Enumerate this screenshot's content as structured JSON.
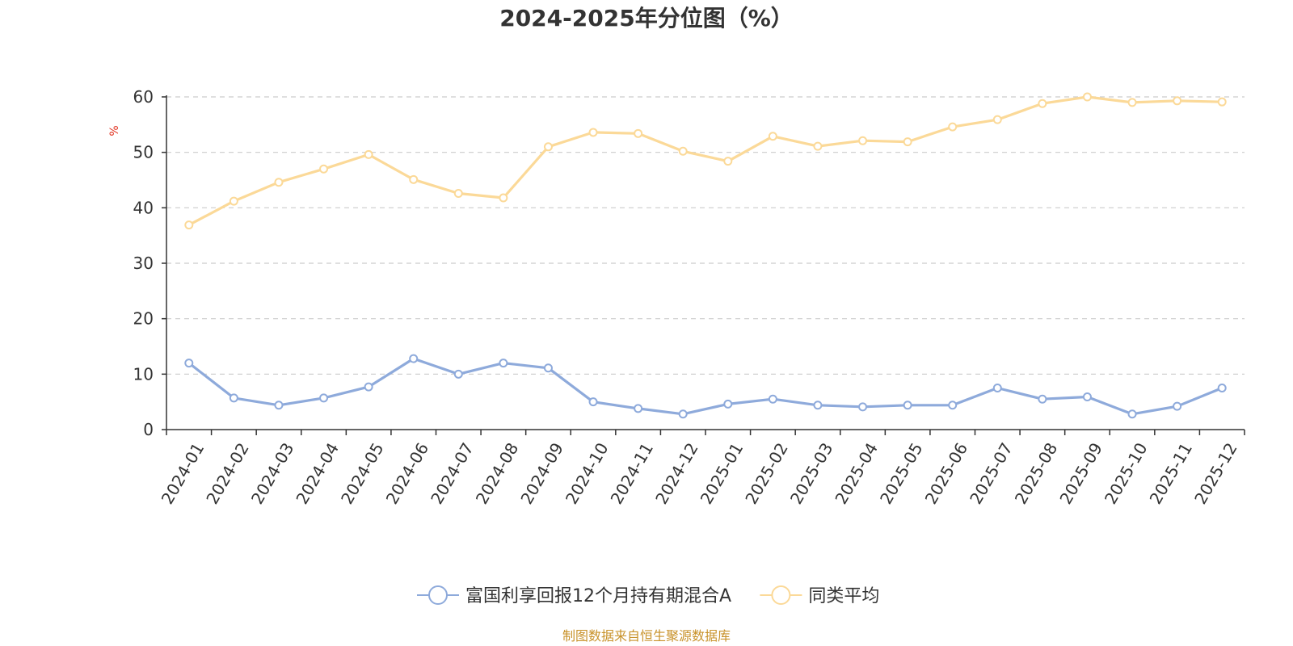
{
  "chart_data": {
    "type": "line",
    "title": "2024-2025年分位图（%）",
    "xlabel": "",
    "ylabel": "%",
    "ylim": [
      0,
      60
    ],
    "yticks": [
      0,
      10,
      20,
      30,
      40,
      50,
      60
    ],
    "grid": true,
    "legend_position": "bottom",
    "categories": [
      "2024-01",
      "2024-02",
      "2024-03",
      "2024-04",
      "2024-05",
      "2024-06",
      "2024-07",
      "2024-08",
      "2024-09",
      "2024-10",
      "2024-11",
      "2024-12",
      "2025-01",
      "2025-02",
      "2025-03",
      "2025-04",
      "2025-05",
      "2025-06",
      "2025-07",
      "2025-08",
      "2025-09",
      "2025-10",
      "2025-11",
      "2025-12"
    ],
    "series": [
      {
        "name": "富国利享回报12个月持有期混合A",
        "color": "#8eaadb",
        "values": [
          12.0,
          5.7,
          4.4,
          5.7,
          7.7,
          12.8,
          10.0,
          12.0,
          11.1,
          5.0,
          3.8,
          2.8,
          4.6,
          5.5,
          4.4,
          4.1,
          4.4,
          4.4,
          7.5,
          5.5,
          5.9,
          2.8,
          4.2,
          7.5
        ]
      },
      {
        "name": "同类平均",
        "color": "#fbd998",
        "values": [
          36.9,
          41.2,
          44.6,
          47.0,
          49.6,
          45.1,
          42.6,
          41.8,
          51.0,
          53.6,
          53.4,
          50.2,
          48.4,
          52.9,
          51.1,
          52.1,
          51.9,
          54.6,
          55.9,
          58.8,
          60.0,
          59.0,
          59.3,
          59.1
        ]
      }
    ],
    "source_note": "制图数据来自恒生聚源数据库"
  }
}
